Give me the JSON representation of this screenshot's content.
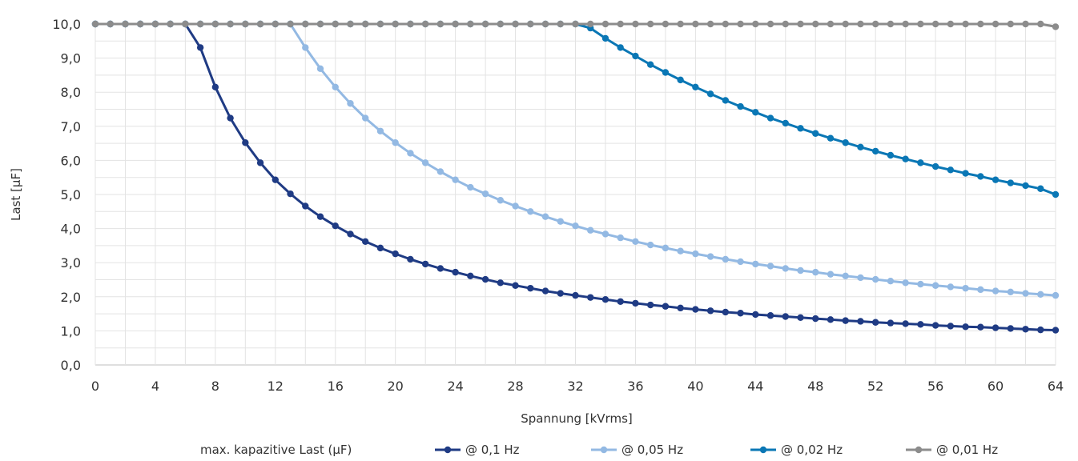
{
  "chart_data": {
    "type": "line",
    "xlabel": "Spannung [kVrms]",
    "ylabel": "Last [µF]",
    "xlim": [
      0,
      64
    ],
    "ylim": [
      0,
      10
    ],
    "x_ticks": [
      "0",
      "4",
      "8",
      "12",
      "16",
      "20",
      "24",
      "28",
      "32",
      "36",
      "40",
      "44",
      "48",
      "52",
      "56",
      "60",
      "64"
    ],
    "y_ticks": [
      "0,0",
      "1,0",
      "2,0",
      "3,0",
      "4,0",
      "5,0",
      "6,0",
      "7,0",
      "8,0",
      "9,0",
      "10,0"
    ],
    "grid": true,
    "legend_position": "bottom",
    "legend_title": "max. kapazitive Last (µF)",
    "x": [
      0,
      1,
      2,
      3,
      4,
      5,
      6,
      7,
      8,
      9,
      10,
      11,
      12,
      13,
      14,
      15,
      16,
      17,
      18,
      19,
      20,
      21,
      22,
      23,
      24,
      25,
      26,
      27,
      28,
      29,
      30,
      31,
      32,
      33,
      34,
      35,
      36,
      37,
      38,
      39,
      40,
      41,
      42,
      43,
      44,
      45,
      46,
      47,
      48,
      49,
      50,
      51,
      52,
      53,
      54,
      55,
      56,
      57,
      58,
      59,
      60,
      61,
      62,
      63,
      64
    ],
    "series": [
      {
        "name": "@ 0,1 Hz",
        "color": "#1f3b84",
        "values": [
          10,
          10,
          10,
          10,
          10,
          10,
          10,
          9.31,
          8.15,
          7.24,
          6.52,
          5.93,
          5.43,
          5.02,
          4.66,
          4.35,
          4.08,
          3.84,
          3.62,
          3.43,
          3.26,
          3.1,
          2.96,
          2.83,
          2.72,
          2.61,
          2.51,
          2.41,
          2.33,
          2.25,
          2.17,
          2.1,
          2.04,
          1.98,
          1.92,
          1.86,
          1.81,
          1.76,
          1.72,
          1.67,
          1.63,
          1.59,
          1.55,
          1.52,
          1.48,
          1.45,
          1.42,
          1.39,
          1.36,
          1.33,
          1.3,
          1.28,
          1.25,
          1.23,
          1.21,
          1.19,
          1.16,
          1.14,
          1.12,
          1.11,
          1.09,
          1.07,
          1.05,
          1.03,
          1.02
        ]
      },
      {
        "name": "@ 0,05 Hz",
        "color": "#93b9e3",
        "values": [
          10,
          10,
          10,
          10,
          10,
          10,
          10,
          10,
          10,
          10,
          10,
          10,
          10,
          10,
          9.31,
          8.69,
          8.15,
          7.67,
          7.24,
          6.86,
          6.52,
          6.21,
          5.93,
          5.67,
          5.43,
          5.21,
          5.02,
          4.83,
          4.66,
          4.5,
          4.35,
          4.21,
          4.08,
          3.95,
          3.84,
          3.73,
          3.62,
          3.52,
          3.43,
          3.34,
          3.26,
          3.18,
          3.1,
          3.03,
          2.96,
          2.9,
          2.83,
          2.77,
          2.72,
          2.66,
          2.61,
          2.56,
          2.51,
          2.46,
          2.41,
          2.37,
          2.33,
          2.29,
          2.25,
          2.21,
          2.17,
          2.14,
          2.1,
          2.07,
          2.04
        ]
      },
      {
        "name": "@ 0,02 Hz",
        "color": "#0a77b5",
        "values": [
          10,
          10,
          10,
          10,
          10,
          10,
          10,
          10,
          10,
          10,
          10,
          10,
          10,
          10,
          10,
          10,
          10,
          10,
          10,
          10,
          10,
          10,
          10,
          10,
          10,
          10,
          10,
          10,
          10,
          10,
          10,
          10,
          10,
          9.88,
          9.58,
          9.31,
          9.06,
          8.81,
          8.58,
          8.36,
          8.15,
          7.95,
          7.76,
          7.58,
          7.41,
          7.24,
          7.09,
          6.94,
          6.79,
          6.65,
          6.52,
          6.39,
          6.27,
          6.15,
          6.04,
          5.93,
          5.82,
          5.72,
          5.62,
          5.53,
          5.43,
          5.34,
          5.26,
          5.17,
          5.0
        ]
      },
      {
        "name": "@ 0,01 Hz",
        "color": "#8c8c8c",
        "values": [
          10,
          10,
          10,
          10,
          10,
          10,
          10,
          10,
          10,
          10,
          10,
          10,
          10,
          10,
          10,
          10,
          10,
          10,
          10,
          10,
          10,
          10,
          10,
          10,
          10,
          10,
          10,
          10,
          10,
          10,
          10,
          10,
          10,
          10,
          10,
          10,
          10,
          10,
          10,
          10,
          10,
          10,
          10,
          10,
          10,
          10,
          10,
          10,
          10,
          10,
          10,
          10,
          10,
          10,
          10,
          10,
          10,
          10,
          10,
          10,
          10,
          10,
          10,
          10,
          9.92
        ]
      }
    ]
  }
}
